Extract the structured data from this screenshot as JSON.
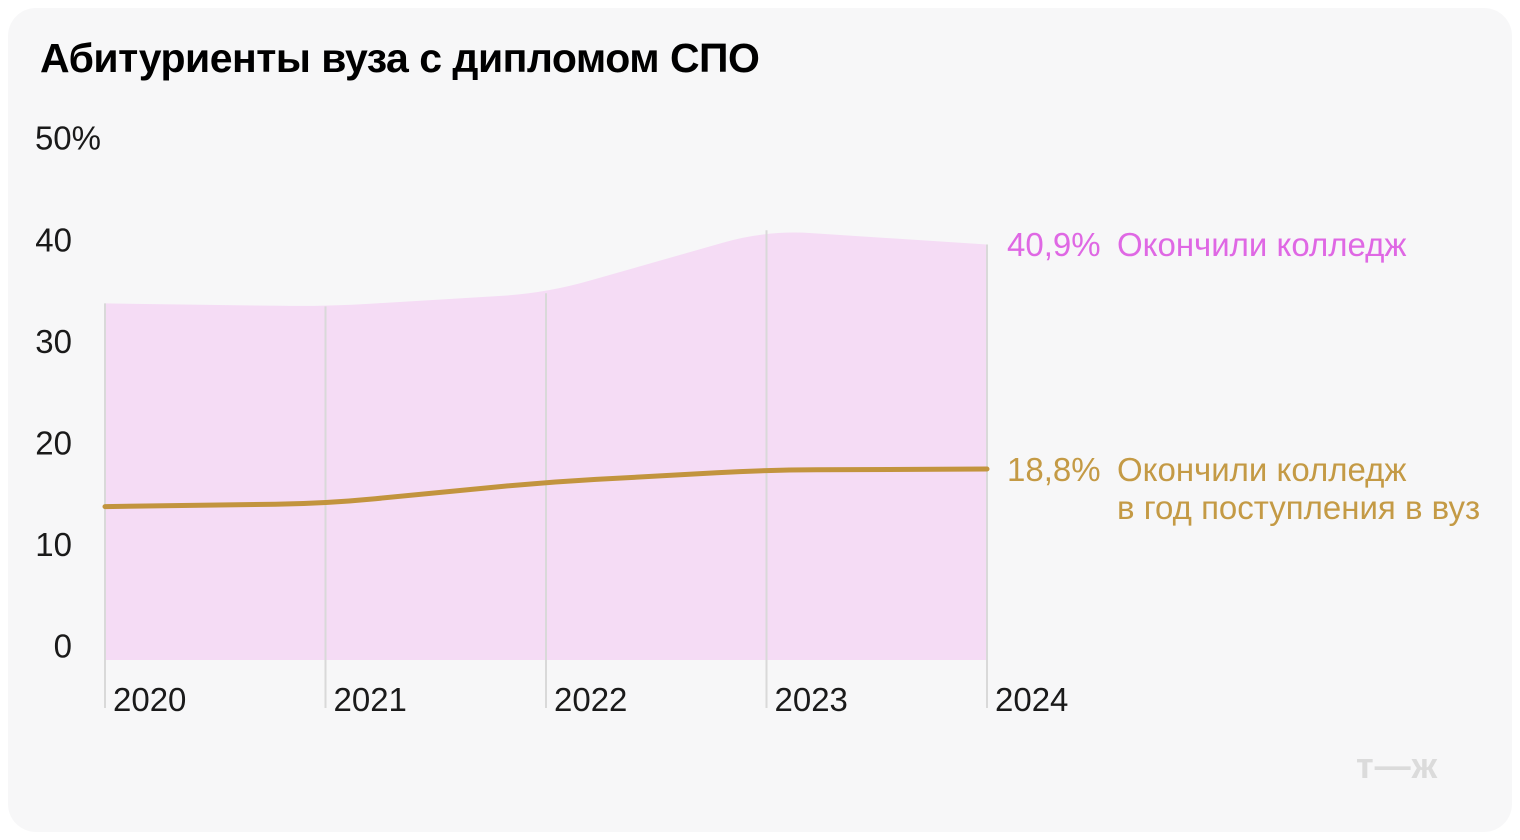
{
  "chart_data": {
    "type": "area",
    "title": "Абитуриенты вуза с дипломом СПО",
    "x": [
      "2020",
      "2021",
      "2022",
      "2023",
      "2024"
    ],
    "xlabel": "",
    "ylabel": "",
    "ylim": [
      0,
      50
    ],
    "grid": "vertical-only",
    "legend_position": "right-edge-annotations",
    "y_ticks": [
      {
        "value": 50,
        "label": "50%"
      },
      {
        "value": 40,
        "label": "40"
      },
      {
        "value": 30,
        "label": "30"
      },
      {
        "value": 20,
        "label": "20"
      },
      {
        "value": 10,
        "label": "10"
      },
      {
        "value": 0,
        "label": "0"
      }
    ],
    "series": [
      {
        "name": "Окончили колледж",
        "type": "area",
        "fill_color": "#F5DCF5",
        "label_color": "#DF68E4",
        "values": [
          35.1,
          34.8,
          36.1,
          42.3,
          40.9
        ],
        "end_label": "40,9%",
        "label_lines": [
          "Окончили колледж"
        ]
      },
      {
        "name": "Окончили колледж в год поступления в вуз",
        "type": "line",
        "line_color": "#C2943E",
        "label_color": "#C49A45",
        "values": [
          15.1,
          15.4,
          17.5,
          18.7,
          18.8
        ],
        "end_label": "18,8%",
        "label_lines": [
          "Окончили колледж",
          "в год поступления в вуз"
        ]
      }
    ],
    "gridline_color": "#D9D9D9",
    "axis_text_color": "#1A1A1A"
  },
  "logo": {
    "text": "т—ж"
  }
}
